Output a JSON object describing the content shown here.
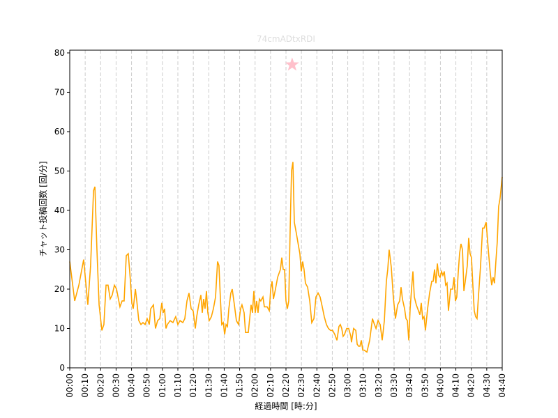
{
  "chart_data": {
    "type": "line",
    "title": "74cmADtxRDI",
    "xlabel": "経過時間 [時:分]",
    "ylabel": "チャット投稿回数 [回/分]",
    "x": [
      0,
      3.2,
      5.9,
      9.0,
      11.7,
      13.5,
      15.4,
      16.3,
      17.6,
      19.0,
      20.8,
      22.1,
      23.5,
      24.8,
      26.2,
      27.5,
      28.9,
      30.3,
      32.5,
      33.9,
      35.2,
      36.6,
      37.9,
      39.3,
      40.2,
      41.1,
      42.5,
      43.4,
      44.7,
      46.1,
      47.4,
      48.8,
      50.1,
      51.5,
      52.4,
      53.3,
      54.2,
      55.5,
      56.9,
      58.3,
      59.6,
      60.5,
      61.4,
      62.3,
      63.2,
      65.0,
      66.8,
      68.6,
      70.0,
      71.4,
      73.2,
      74.5,
      75.9,
      77.2,
      78.6,
      79.9,
      81.3,
      82.2,
      83.5,
      84.9,
      85.8,
      86.7,
      87.6,
      88.5,
      89.4,
      90.3,
      91.7,
      93.0,
      94.4,
      95.7,
      96.6,
      97.5,
      98.4,
      99.4,
      100.3,
      101.2,
      102.1,
      103.0,
      104.3,
      105.2,
      106.6,
      107.9,
      109.3,
      110.6,
      111.5,
      112.9,
      113.8,
      115.6,
      117.4,
      118.3,
      119.2,
      120.1,
      121.0,
      121.9,
      122.8,
      123.7,
      125.1,
      126.0,
      127.8,
      129.2,
      130.1,
      131.0,
      131.9,
      133.2,
      134.6,
      136.4,
      137.3,
      138.2,
      139.1,
      140.0,
      140.9,
      141.8,
      142.7,
      143.6,
      144.5,
      145.4,
      146.8,
      148.1,
      149.0,
      149.9,
      150.8,
      151.7,
      152.6,
      154.0,
      155.4,
      156.7,
      158.1,
      159.4,
      160.8,
      162.1,
      163.5,
      164.8,
      166.2,
      167.5,
      168.9,
      170.2,
      171.6,
      173.0,
      174.3,
      175.2,
      176.1,
      177.0,
      177.9,
      179.3,
      180.6,
      182.0,
      182.4,
      183.8,
      185.2,
      186.1,
      187.0,
      187.9,
      188.8,
      189.7,
      190.6,
      192.4,
      194.2,
      196.0,
      197.3,
      198.3,
      199.6,
      201.0,
      202.3,
      203.7,
      205.0,
      205.9,
      206.8,
      208.2,
      209.5,
      210.9,
      212.3,
      213.6,
      214.5,
      215.4,
      216.8,
      217.7,
      218.6,
      219.5,
      220.4,
      221.3,
      222.2,
      223.1,
      224.4,
      225.8,
      226.7,
      227.6,
      228.5,
      229.4,
      230.3,
      231.7,
      233.0,
      234.4,
      235.3,
      236.2,
      237.1,
      238.0,
      238.9,
      239.8,
      240.7,
      241.6,
      242.5,
      243.4,
      244.3,
      245.2,
      246.6,
      247.9,
      248.8,
      249.7,
      250.6,
      251.5,
      252.4,
      253.3,
      254.3,
      255.2,
      256.1,
      257.4,
      258.3,
      259.2,
      260.1,
      261.0,
      261.9,
      262.8,
      263.7,
      264.6,
      266.0,
      267.3,
      268.3,
      269.6,
      271.0,
      272.3,
      273.2,
      274.1,
      275.0,
      275.9,
      276.8,
      277.7,
      278.6,
      280
    ],
    "series": [
      {
        "color": "#ffa500",
        "values": [
          27,
          17,
          21,
          27.5,
          16,
          26,
          45,
          46,
          30,
          16,
          9.5,
          11,
          21,
          21,
          17.5,
          18.5,
          21,
          20,
          15.5,
          17,
          17,
          28.5,
          29,
          22,
          16.5,
          15,
          20,
          17,
          12,
          11,
          11.5,
          11,
          12.5,
          11,
          15,
          15.5,
          16,
          10,
          12,
          12.5,
          16.5,
          14,
          15,
          10,
          11,
          12,
          11.5,
          13,
          11,
          12,
          11.5,
          12.5,
          17,
          19,
          15,
          14.5,
          10,
          13,
          16,
          18.5,
          14,
          17.5,
          15,
          19.5,
          14,
          12,
          13,
          15,
          18,
          27,
          26,
          18,
          11,
          11.5,
          8.5,
          11,
          10.5,
          15,
          19,
          20,
          16,
          12,
          11,
          15,
          16,
          14,
          9,
          9,
          16,
          14,
          19.5,
          14,
          17,
          14,
          17.5,
          17,
          18,
          15.5,
          15.5,
          14.5,
          20,
          22,
          17.5,
          20,
          23,
          25,
          28,
          25,
          25,
          17,
          15,
          17,
          35,
          50,
          52.3,
          37,
          34,
          31,
          29,
          24.5,
          27,
          25,
          21.5,
          20.5,
          17,
          11.5,
          12.5,
          18,
          19,
          18,
          15.5,
          13,
          11,
          10,
          9.5,
          9.5,
          8.5,
          7,
          10.5,
          11,
          10,
          8,
          8.5,
          10,
          10,
          8,
          6.5,
          10,
          9.5,
          6,
          5.5,
          5.5,
          7,
          4.5,
          4.5,
          4,
          7,
          12.5,
          11,
          10,
          12,
          11,
          7,
          12,
          22,
          25,
          30,
          25.5,
          18,
          12.5,
          16,
          17,
          20.5,
          17.5,
          15,
          12.5,
          12,
          7,
          15,
          20,
          24.5,
          18,
          16,
          14.5,
          13.5,
          16.5,
          12.5,
          13,
          9.5,
          15,
          19,
          22,
          22,
          25,
          21.5,
          26.5,
          23.5,
          23,
          24.5,
          23.5,
          24.5,
          21,
          21.5,
          14.5,
          20,
          20,
          23,
          17,
          18,
          24,
          29,
          31.5,
          30,
          19.5,
          22,
          26,
          33,
          29,
          28,
          21,
          14.5,
          13,
          12.5,
          18,
          26,
          35.5,
          35.5,
          37,
          30,
          24,
          21,
          23,
          21.5,
          27,
          32,
          41,
          43,
          48.5
        ]
      }
    ],
    "marker": {
      "x": 144,
      "y": 77,
      "color": "#ffc0cb"
    },
    "xlim": [
      0,
      280
    ],
    "ylim": [
      0,
      80.7
    ],
    "yticks": [
      0,
      10,
      20,
      30,
      40,
      50,
      60,
      70,
      80
    ],
    "xticks": [
      {
        "value": 0,
        "label": "00:00"
      },
      {
        "value": 10,
        "label": "00:10"
      },
      {
        "value": 20,
        "label": "00:20"
      },
      {
        "value": 30,
        "label": "00:30"
      },
      {
        "value": 40,
        "label": "00:40"
      },
      {
        "value": 50,
        "label": "00:50"
      },
      {
        "value": 60,
        "label": "01:00"
      },
      {
        "value": 70,
        "label": "01:10"
      },
      {
        "value": 80,
        "label": "01:20"
      },
      {
        "value": 90,
        "label": "01:30"
      },
      {
        "value": 100,
        "label": "01:40"
      },
      {
        "value": 110,
        "label": "01:50"
      },
      {
        "value": 120,
        "label": "02:00"
      },
      {
        "value": 130,
        "label": "02:10"
      },
      {
        "value": 140,
        "label": "02:20"
      },
      {
        "value": 150,
        "label": "02:30"
      },
      {
        "value": 160,
        "label": "02:40"
      },
      {
        "value": 170,
        "label": "02:50"
      },
      {
        "value": 180,
        "label": "03:00"
      },
      {
        "value": 190,
        "label": "03:10"
      },
      {
        "value": 200,
        "label": "03:20"
      },
      {
        "value": 210,
        "label": "03:30"
      },
      {
        "value": 220,
        "label": "03:40"
      },
      {
        "value": 230,
        "label": "03:50"
      },
      {
        "value": 240,
        "label": "04:00"
      },
      {
        "value": 250,
        "label": "04:10"
      },
      {
        "value": 260,
        "label": "04:20"
      },
      {
        "value": 270,
        "label": "04:30"
      },
      {
        "value": 280,
        "label": "04:40"
      }
    ],
    "xgrid": true
  }
}
